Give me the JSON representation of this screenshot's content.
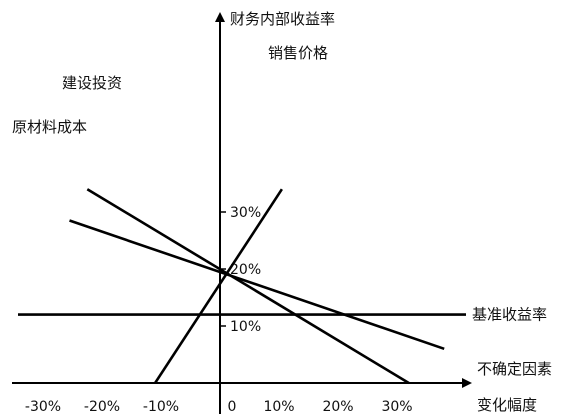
{
  "chart_data": {
    "type": "line",
    "title": "",
    "xlabel_line1": "不确定因素",
    "xlabel_line2": "变化幅度",
    "ylabel": "财务内部收益率",
    "x_ticks": [
      "-30%",
      "-20%",
      "-10%",
      "0",
      "10%",
      "20%",
      "30%"
    ],
    "x_tick_values": [
      -30,
      -20,
      -10,
      0,
      10,
      20,
      30
    ],
    "y_ticks": [
      "10%",
      "20%",
      "30%"
    ],
    "y_tick_values": [
      10,
      20,
      30
    ],
    "xlim": [
      -32,
      35
    ],
    "ylim": [
      0,
      40
    ],
    "series": [
      {
        "name": "销售价格",
        "x": [
          -11,
          10.5
        ],
        "y": [
          0,
          34
        ]
      },
      {
        "name": "建设投资",
        "x": [
          -22.5,
          32
        ],
        "y": [
          34,
          0
        ]
      },
      {
        "name": "原材料成本",
        "x": [
          -25.5,
          38
        ],
        "y": [
          28.5,
          6
        ]
      }
    ],
    "reference_lines": [
      {
        "name": "基准收益率",
        "y": 12
      }
    ]
  }
}
